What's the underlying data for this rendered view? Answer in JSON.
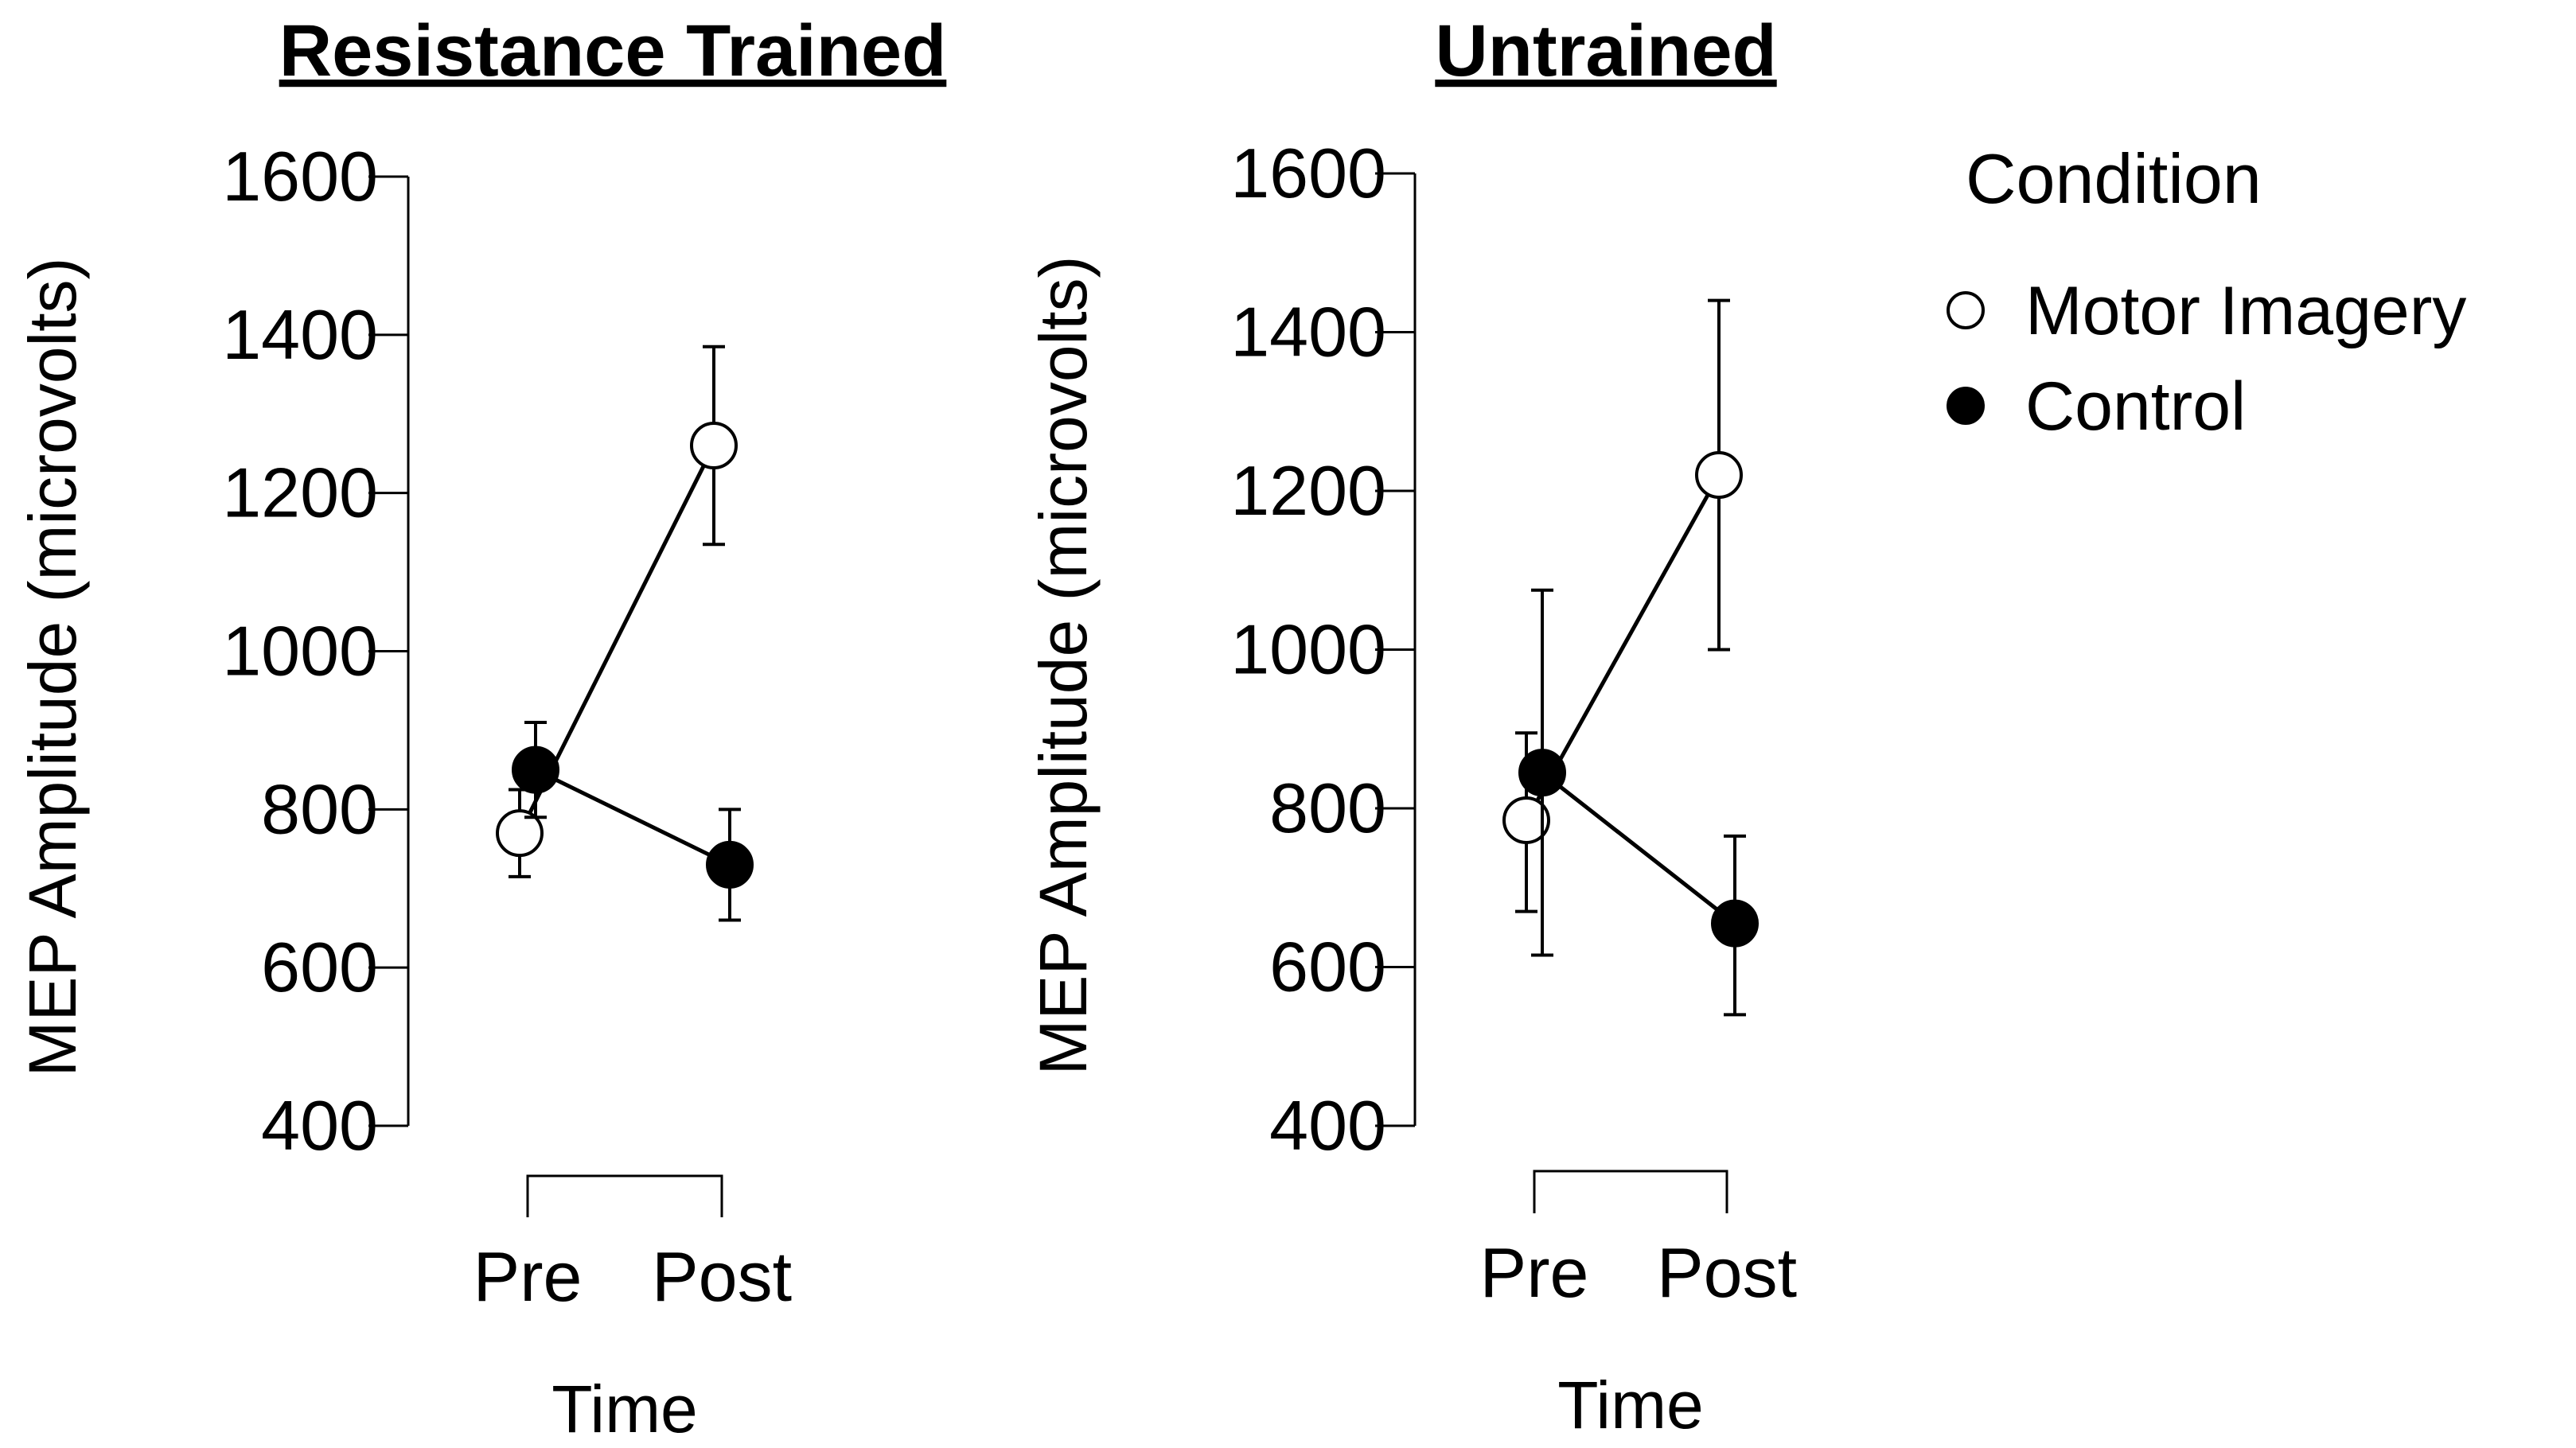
{
  "chart_data": [
    {
      "type": "line",
      "title": "Resistance Trained",
      "xlabel": "Time",
      "ylabel": "MEP Amplitude (microvolts)",
      "categories": [
        "Pre",
        "Post"
      ],
      "ylim": [
        400,
        1600
      ],
      "yticks": [
        400,
        600,
        800,
        1000,
        1200,
        1400,
        1600
      ],
      "series": [
        {
          "name": "Motor Imagery",
          "marker": "open-circle",
          "color": "#000000",
          "values": [
            770,
            1260
          ],
          "err_low": [
            715,
            1135
          ],
          "err_high": [
            825,
            1385
          ]
        },
        {
          "name": "Control",
          "marker": "filled-circle",
          "color": "#000000",
          "values": [
            850,
            730
          ],
          "err_low": [
            790,
            660
          ],
          "err_high": [
            910,
            800
          ]
        }
      ]
    },
    {
      "type": "line",
      "title": "Untrained",
      "xlabel": "Time",
      "ylabel": "MEP Amplitude (microvolts)",
      "categories": [
        "Pre",
        "Post"
      ],
      "ylim": [
        400,
        1600
      ],
      "yticks": [
        400,
        600,
        800,
        1000,
        1200,
        1400,
        1600
      ],
      "series": [
        {
          "name": "Motor Imagery",
          "marker": "open-circle",
          "color": "#000000",
          "values": [
            785,
            1220
          ],
          "err_low": [
            670,
            1000
          ],
          "err_high": [
            895,
            1440
          ]
        },
        {
          "name": "Control",
          "marker": "filled-circle",
          "color": "#000000",
          "values": [
            845,
            655
          ],
          "err_low": [
            615,
            540
          ],
          "err_high": [
            1075,
            765
          ]
        }
      ]
    }
  ],
  "legend": {
    "title": "Condition",
    "items": [
      {
        "label": "Motor Imagery",
        "marker": "open-circle"
      },
      {
        "label": "Control",
        "marker": "filled-circle"
      }
    ]
  }
}
